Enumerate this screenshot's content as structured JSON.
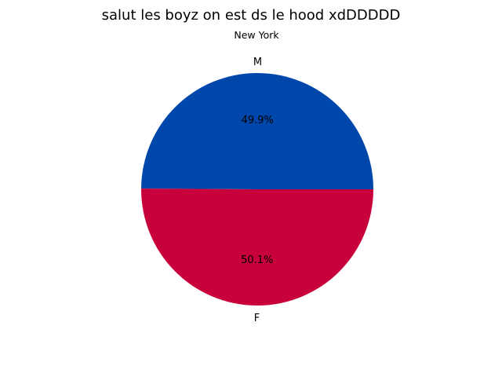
{
  "chart_data": {
    "type": "pie",
    "title": "salut les boyz on est ds le hood xdDDDDD",
    "subtitle": "New York",
    "labels": [
      "M",
      "F"
    ],
    "values": [
      49.9,
      50.1
    ],
    "percent_labels": [
      "49.9%",
      "50.1%"
    ],
    "colors": [
      "#0047AB",
      "#C8003C"
    ],
    "legend": "none",
    "grid": false
  }
}
